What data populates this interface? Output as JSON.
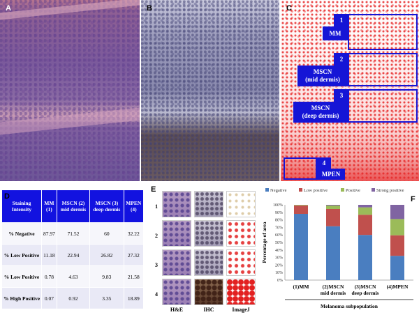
{
  "panels": {
    "a": {
      "label": "A"
    },
    "b": {
      "label": "B"
    },
    "c": {
      "label": "C",
      "regions": [
        {
          "num": "1",
          "name": "MM",
          "sub": ""
        },
        {
          "num": "2",
          "name": "MSCN",
          "sub": "(mid dermis)"
        },
        {
          "num": "3",
          "name": "MSCN",
          "sub": "(deep dermis)"
        },
        {
          "num": "4",
          "name": "MPEN",
          "sub": ""
        }
      ]
    },
    "d": {
      "label": "D",
      "header": [
        "Staining Intensity",
        "MM (1)",
        "MSCN (2) mid dermis",
        "MSCN (3) deep dermis",
        "MPEN (4)"
      ],
      "rows": [
        {
          "label": "% Negative",
          "values": [
            "87.97",
            "71.52",
            "60",
            "32.22"
          ]
        },
        {
          "label": "% Low Positive",
          "values": [
            "11.18",
            "22.94",
            "26.82",
            "27.32"
          ]
        },
        {
          "label": "% Low Positive",
          "values": [
            "0.78",
            "4.63",
            "9.83",
            "21.58"
          ]
        },
        {
          "label": "% High Positive",
          "values": [
            "0.07",
            "0.92",
            "3.35",
            "18.89"
          ]
        }
      ]
    },
    "e": {
      "label": "E",
      "rows": [
        "1",
        "2",
        "3",
        "4"
      ],
      "columns": [
        "H&E",
        "IHC",
        "ImageJ"
      ]
    },
    "f": {
      "label": "F"
    }
  },
  "chart_data": {
    "type": "bar",
    "stacked": true,
    "categories": [
      "(1)MM",
      "(2)MSCN mid dermis",
      "(3)MSCN deep dermis",
      "(4)MPEN"
    ],
    "series": [
      {
        "name": "Negative",
        "color": "#4a7ec0",
        "values": [
          87.97,
          71.52,
          60,
          32.22
        ]
      },
      {
        "name": "Low positive",
        "color": "#c0504d",
        "values": [
          11.18,
          22.94,
          26.82,
          27.32
        ]
      },
      {
        "name": "Positive",
        "color": "#9bbb59",
        "values": [
          0.78,
          4.63,
          9.83,
          21.58
        ]
      },
      {
        "name": "Strong positive",
        "color": "#8064a2",
        "values": [
          0.07,
          0.92,
          3.35,
          18.89
        ]
      }
    ],
    "ylabel": "Percentage of area",
    "xlabel": "Melanoma subpopulation",
    "ylim": [
      0,
      100
    ],
    "yticks": [
      "0%",
      "10%",
      "20%",
      "30%",
      "40%",
      "50%",
      "60%",
      "70%",
      "80%",
      "90%",
      "100%"
    ],
    "legend_position": "top",
    "grid": false
  }
}
